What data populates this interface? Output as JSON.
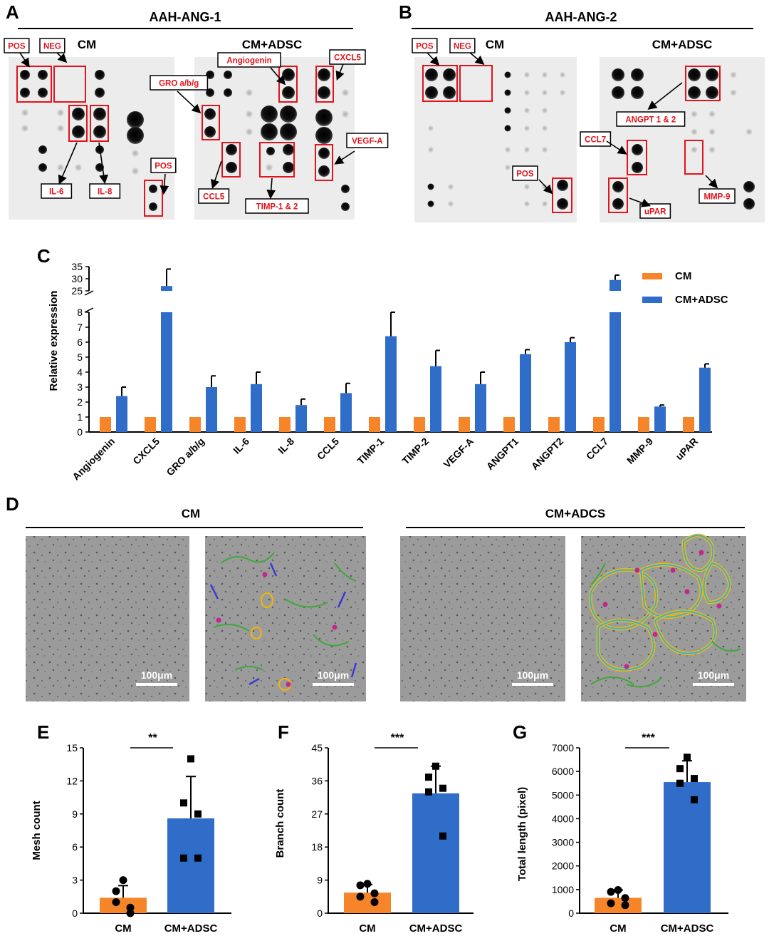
{
  "panels": {
    "A": {
      "letter": "A",
      "title": "AAH-ANG-1",
      "left_label": "CM",
      "right_label": "CM+ADSC",
      "tags": [
        "POS",
        "NEG",
        "Angiogenin",
        "CXCL5",
        "GRO a/b/g",
        "VEGF-A",
        "IL-6",
        "IL-8",
        "CCL5",
        "TIMP-1 & 2",
        "POS"
      ]
    },
    "B": {
      "letter": "B",
      "title": "AAH-ANG-2",
      "left_label": "CM",
      "right_label": "CM+ADSC",
      "tags": [
        "POS",
        "NEG",
        "ANGPT 1 & 2",
        "CCL7",
        "POS",
        "MMP-9",
        "uPAR"
      ]
    },
    "D": {
      "letter": "D",
      "left_label": "CM",
      "right_label": "CM+ADCS",
      "scale_bar": "100μm"
    }
  },
  "colors": {
    "cm": "#f6852a",
    "adsc": "#2f6dc9",
    "annotation": "#e3131b"
  },
  "chart_data": [
    {
      "id": "C",
      "letter": "C",
      "type": "bar",
      "ylabel": "Relative expression",
      "categories": [
        "Angiogenin",
        "CXCL5",
        "GRO a/b/g",
        "IL-6",
        "IL-8",
        "CCL5",
        "TIMP-1",
        "TIMP-2",
        "VEGF-A",
        "ANGPT1",
        "ANGPT2",
        "CCL7",
        "MMP-9",
        "uPAR"
      ],
      "series": [
        {
          "name": "CM",
          "values": [
            1,
            1,
            1,
            1,
            1,
            1,
            1,
            1,
            1,
            1,
            1,
            1,
            1,
            1
          ],
          "errors": [
            0,
            0,
            0,
            0,
            0,
            0,
            0,
            0,
            0,
            0,
            0,
            0,
            0,
            0
          ]
        },
        {
          "name": "CM+ADSC",
          "values": [
            2.4,
            27,
            3.0,
            3.2,
            1.8,
            2.6,
            6.4,
            4.4,
            3.2,
            5.2,
            6.0,
            29.5,
            1.7,
            4.3
          ],
          "errors": [
            0.6,
            7,
            0.75,
            0.8,
            0.4,
            0.65,
            1.6,
            1.05,
            0.8,
            0.3,
            0.3,
            2,
            0.1,
            0.25
          ]
        }
      ],
      "ylim_lower": [
        0,
        8
      ],
      "yticks_lower": [
        0,
        1,
        2,
        3,
        4,
        5,
        6,
        7,
        8
      ],
      "ylim_upper": [
        25,
        35
      ],
      "yticks_upper": [
        25,
        30,
        35
      ],
      "legend": "top-right"
    },
    {
      "id": "E",
      "letter": "E",
      "type": "bar",
      "ylabel": "Mesh count",
      "categories": [
        "CM",
        "CM+ADSC"
      ],
      "values": [
        1.4,
        8.6
      ],
      "errors": [
        1.1,
        3.8
      ],
      "points": [
        [
          3,
          2,
          0.5,
          1,
          0
        ],
        [
          14,
          10,
          9,
          5,
          5
        ]
      ],
      "ylim": [
        0,
        15
      ],
      "yticks": [
        0,
        3,
        6,
        9,
        12,
        15
      ],
      "significance": "**"
    },
    {
      "id": "F",
      "letter": "F",
      "type": "bar",
      "ylabel": "Branch count",
      "categories": [
        "CM",
        "CM+ADSC"
      ],
      "values": [
        5.6,
        32.6
      ],
      "errors": [
        2.2,
        7.4
      ],
      "points": [
        [
          8,
          7.6,
          5.4,
          4.5,
          3
        ],
        [
          40,
          37,
          34,
          33,
          21
        ]
      ],
      "ylim": [
        0,
        45
      ],
      "yticks": [
        0,
        9,
        18,
        27,
        36,
        45
      ],
      "significance": "***"
    },
    {
      "id": "G",
      "letter": "G",
      "type": "bar",
      "ylabel": "Total length (pixel)",
      "categories": [
        "CM",
        "CM+ADSC"
      ],
      "values": [
        650,
        5550
      ],
      "errors": [
        330,
        900
      ],
      "points": [
        [
          980,
          900,
          640,
          420,
          340
        ],
        [
          6600,
          6120,
          5700,
          5500,
          4800
        ]
      ],
      "ylim": [
        0,
        7000
      ],
      "yticks": [
        0,
        1000,
        2000,
        3000,
        4000,
        5000,
        6000,
        7000
      ],
      "significance": "***"
    }
  ]
}
